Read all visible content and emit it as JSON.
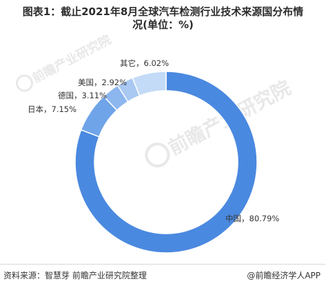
{
  "title_line1": "图表1：截止2021年8月全球汽车检测行业技术来源国分布情",
  "title_line2": "况(单位：%)",
  "watermark_text": "前瞻产业研究院",
  "footer": {
    "source": "资料来源：智慧芽 前瞻产业研究院整理",
    "brand": "@前瞻经济学人APP"
  },
  "colors": {
    "中国": "#4a89e0",
    "日本": "#6fa4e8",
    "德国": "#8cb6ee",
    "美国": "#a9c8f2",
    "其它": "#c4dbf7"
  },
  "chart_data": {
    "type": "pie",
    "style": "donut",
    "title": "截止2021年8月全球汽车检测行业技术来源国分布情况(单位：%)",
    "slices": [
      {
        "name": "中国",
        "value": 80.79,
        "label": "中国，80.79%"
      },
      {
        "name": "日本",
        "value": 7.15,
        "label": "日本，7.15%"
      },
      {
        "name": "德国",
        "value": 3.11,
        "label": "德国，3.11%"
      },
      {
        "name": "美国",
        "value": 2.92,
        "label": "美国，2.92%"
      },
      {
        "name": "其它",
        "value": 6.02,
        "label": "其它，6.02%"
      }
    ]
  }
}
